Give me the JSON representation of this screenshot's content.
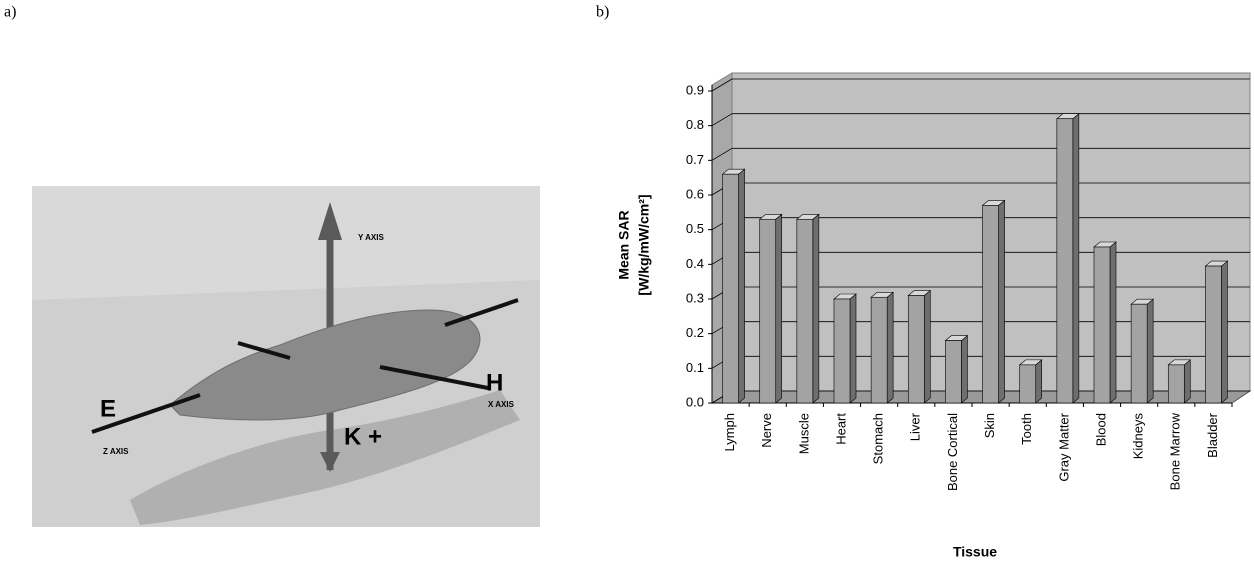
{
  "panel_labels": [
    "a)",
    "b)"
  ],
  "illustration": {
    "labels": [
      "Y AXIS",
      "E",
      "Z AXIS",
      "H",
      "X AXIS",
      "K +"
    ]
  },
  "chart_data": {
    "type": "bar3d",
    "ylabel": [
      "Mean SAR",
      "[W/kg/mW/cm²]"
    ],
    "xlabel": "Tissue",
    "categories": [
      "Lymph",
      "Nerve",
      "Muscle",
      "Heart",
      "Stomach",
      "Liver",
      "Bone Cortical",
      "Skin",
      "Tooth",
      "Gray Matter",
      "Blood",
      "Kidneys",
      "Bone Marrow",
      "Bladder"
    ],
    "values": [
      0.66,
      0.53,
      0.53,
      0.3,
      0.305,
      0.31,
      0.18,
      0.57,
      0.11,
      0.82,
      0.45,
      0.285,
      0.11,
      0.395
    ],
    "color": "#a3a3a3",
    "ylim": [
      0,
      0.9
    ],
    "yticks": [
      {
        "value": 0,
        "label": "0.0"
      },
      0.1,
      0.2,
      0.3,
      0.4,
      0.5,
      0.6,
      0.7,
      0.8,
      0.9
    ],
    "grid": true
  }
}
